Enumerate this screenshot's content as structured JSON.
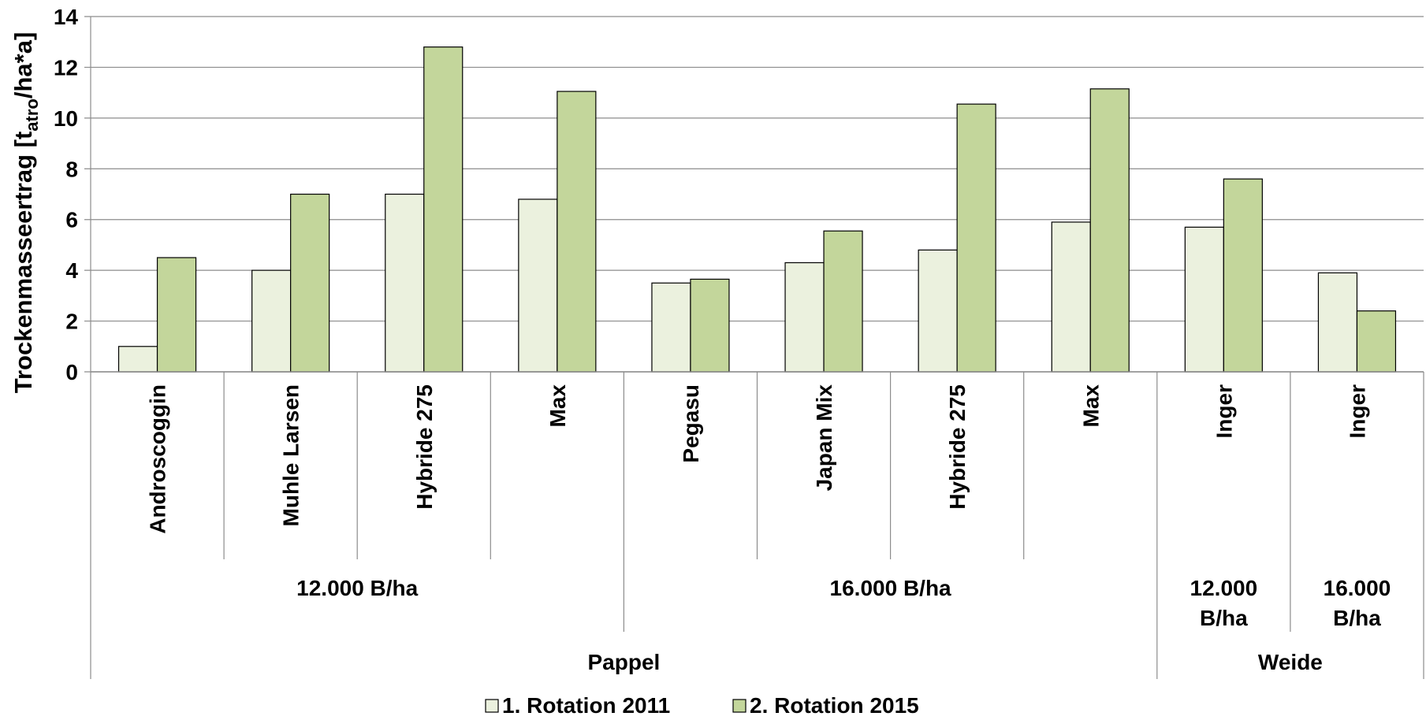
{
  "chart_data": {
    "type": "bar",
    "title": "",
    "xlabel": "",
    "ylabel": {
      "main": "Trockenmasseertrag [t",
      "subscript": "atro",
      "tail": "/ha*a]"
    },
    "ylim": [
      0,
      14
    ],
    "yticks": [
      "0",
      "2",
      "4",
      "6",
      "8",
      "10",
      "12",
      "14"
    ],
    "grid": true,
    "legend_position": "bottom",
    "categories": [
      "Androscoggin",
      "Muhle Larsen",
      "Hybride 275",
      "Max",
      "Pegasu",
      "Japan Mix",
      "Hybride 275",
      "Max",
      "Inger",
      "Inger"
    ],
    "groups_level2": [
      {
        "label": "12.000 B/ha",
        "span": 4
      },
      {
        "label": "16.000 B/ha",
        "span": 4
      },
      {
        "label": "12.000 B/ha",
        "span": 1
      },
      {
        "label": "16.000 B/ha",
        "span": 1
      }
    ],
    "groups_level3": [
      {
        "label": "Pappel",
        "span": 8
      },
      {
        "label": "Weide",
        "span": 2
      }
    ],
    "series": [
      {
        "name": "1. Rotation 2011",
        "color": "#ebf1de",
        "values": [
          1.0,
          4.0,
          7.0,
          6.8,
          3.5,
          4.3,
          4.8,
          5.9,
          5.7,
          3.9
        ]
      },
      {
        "name": "2. Rotation 2015",
        "color": "#c3d69b",
        "values": [
          4.5,
          7.0,
          12.8,
          11.05,
          3.65,
          5.55,
          10.55,
          11.15,
          7.6,
          2.4
        ]
      }
    ]
  }
}
